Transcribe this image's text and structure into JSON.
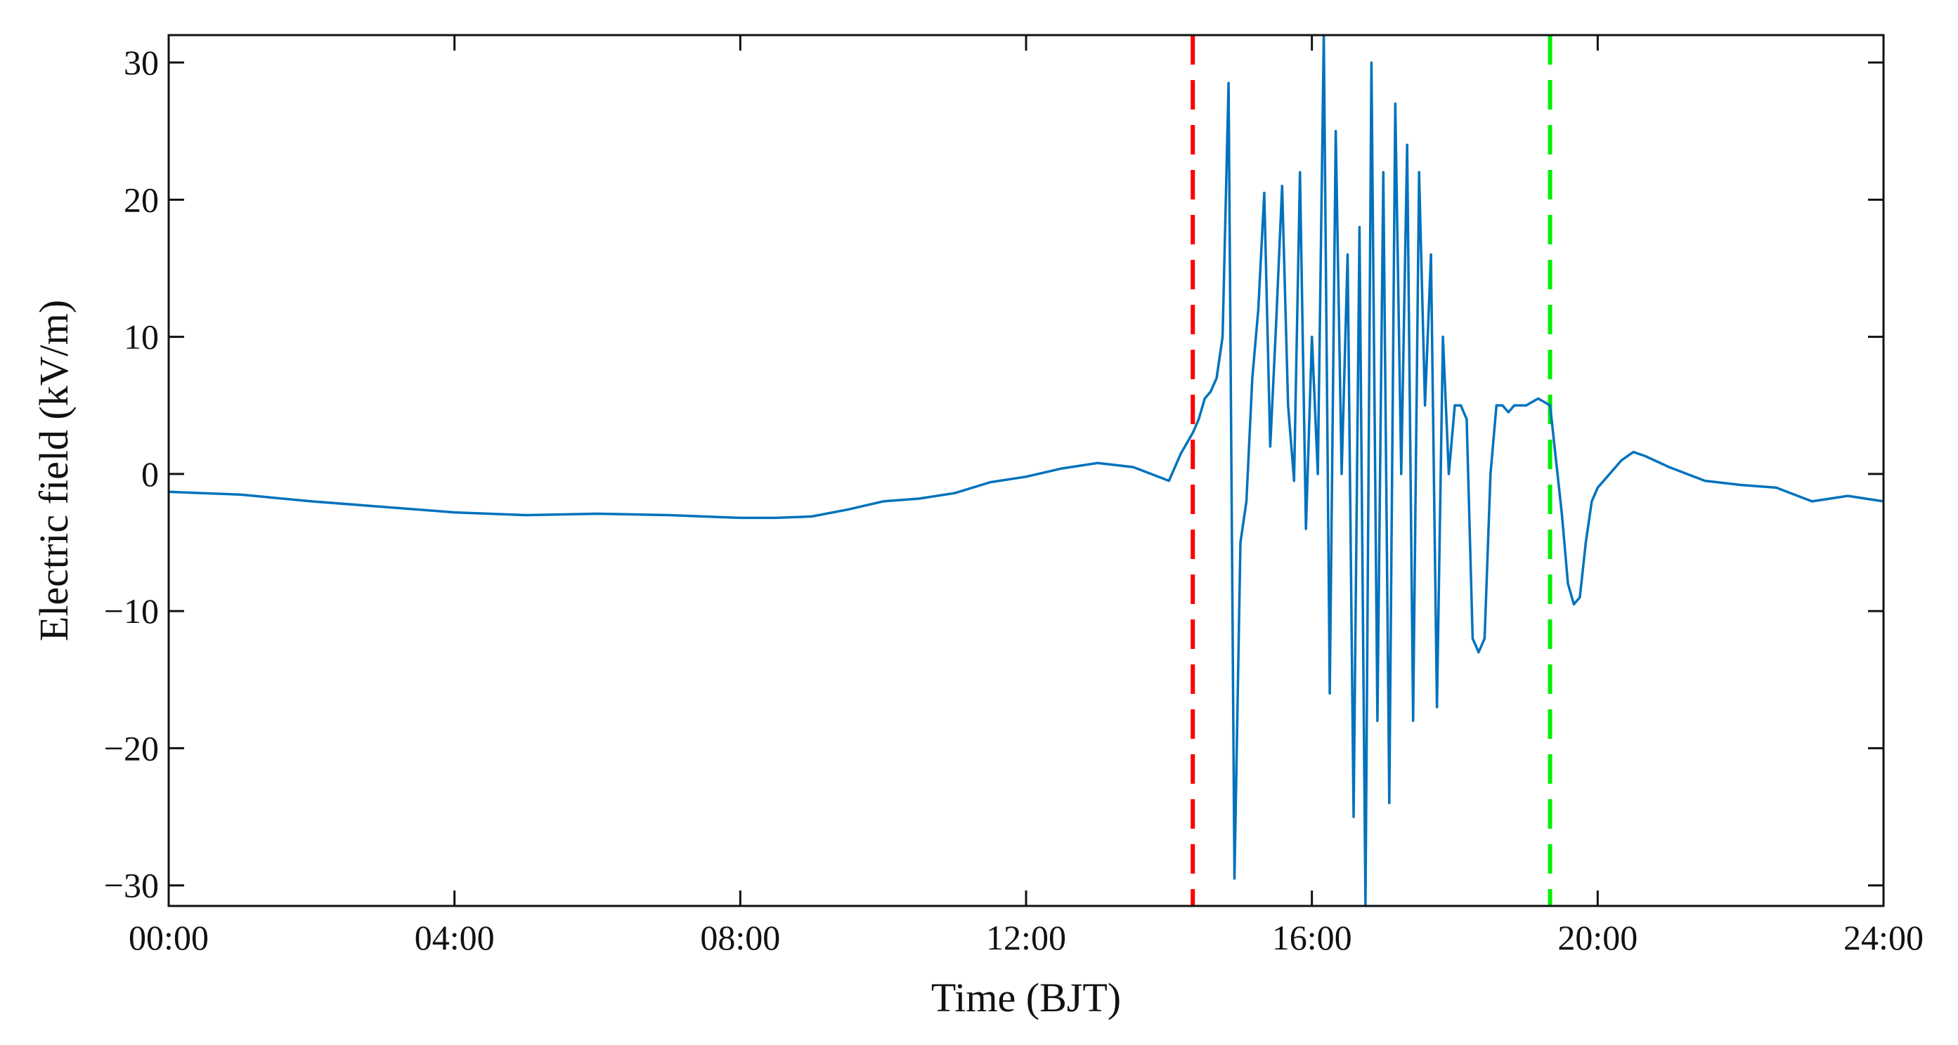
{
  "chart_data": {
    "type": "line",
    "title": "",
    "xlabel": "Time (BJT)",
    "ylabel": "Electric field (kV/m)",
    "xlim": [
      "00:00",
      "24:00"
    ],
    "ylim": [
      -31.5,
      32
    ],
    "x_ticks": [
      "00:00",
      "04:00",
      "08:00",
      "12:00",
      "16:00",
      "20:00",
      "24:00"
    ],
    "y_ticks": [
      -30,
      -20,
      -10,
      0,
      10,
      20,
      30
    ],
    "y_tick_labels": [
      "−30",
      "−20",
      "−10",
      "0",
      "10",
      "20",
      "30"
    ],
    "grid": false,
    "series": [
      {
        "color": "#0072BD",
        "x": [
          "00:00",
          "01:00",
          "02:00",
          "03:00",
          "04:00",
          "05:00",
          "06:00",
          "07:00",
          "08:00",
          "08:30",
          "09:00",
          "09:30",
          "10:00",
          "10:30",
          "11:00",
          "11:30",
          "12:00",
          "12:30",
          "13:00",
          "13:30",
          "14:00",
          "14:10",
          "14:20",
          "14:25",
          "14:30",
          "14:35",
          "14:40",
          "14:45",
          "14:50",
          "14:55",
          "15:00",
          "15:05",
          "15:10",
          "15:15",
          "15:20",
          "15:25",
          "15:30",
          "15:35",
          "15:40",
          "15:45",
          "15:50",
          "15:55",
          "16:00",
          "16:05",
          "16:10",
          "16:15",
          "16:20",
          "16:25",
          "16:30",
          "16:35",
          "16:40",
          "16:45",
          "16:50",
          "16:55",
          "17:00",
          "17:05",
          "17:10",
          "17:15",
          "17:20",
          "17:25",
          "17:30",
          "17:35",
          "17:40",
          "17:45",
          "17:50",
          "17:55",
          "18:00",
          "18:05",
          "18:10",
          "18:15",
          "18:20",
          "18:25",
          "18:30",
          "18:35",
          "18:40",
          "18:45",
          "18:50",
          "18:55",
          "19:00",
          "19:10",
          "19:20",
          "19:30",
          "19:35",
          "19:40",
          "19:45",
          "19:50",
          "19:55",
          "20:00",
          "20:10",
          "20:20",
          "20:30",
          "20:40",
          "21:00",
          "21:30",
          "22:00",
          "22:30",
          "23:00",
          "23:30",
          "24:00"
        ],
        "y": [
          -1.3,
          -1.5,
          -2.0,
          -2.4,
          -2.8,
          -3.0,
          -2.9,
          -3.0,
          -3.2,
          -3.2,
          -3.1,
          -2.6,
          -2.0,
          -1.8,
          -1.4,
          -0.6,
          -0.2,
          0.4,
          0.8,
          0.5,
          -0.5,
          1.5,
          3.0,
          4.0,
          5.5,
          6.0,
          7.0,
          10.0,
          28.5,
          -29.5,
          -5.0,
          -2.0,
          7.0,
          12.0,
          20.5,
          2.0,
          11.0,
          21.0,
          5.0,
          -0.5,
          22.0,
          -4.0,
          10.0,
          0.0,
          32.0,
          -16.0,
          25.0,
          0.0,
          16.0,
          -25.0,
          18.0,
          -31.5,
          30.0,
          -18.0,
          22.0,
          -24.0,
          27.0,
          0.0,
          24.0,
          -18.0,
          22.0,
          5.0,
          16.0,
          -17.0,
          10.0,
          0.0,
          5.0,
          5.0,
          4.0,
          -12.0,
          -13.0,
          -12.0,
          0.0,
          5.0,
          5.0,
          4.5,
          5.0,
          5.0,
          5.0,
          5.5,
          5.0,
          -3.0,
          -8.0,
          -9.5,
          -9.0,
          -5.0,
          -2.0,
          -1.0,
          0.0,
          1.0,
          1.6,
          1.3,
          0.5,
          -0.5,
          -0.8,
          -1.0,
          -2.0,
          -1.6,
          -2.0
        ]
      }
    ],
    "vertical_lines": [
      {
        "x": "14:20",
        "color": "#FF0000",
        "style": "dashed"
      },
      {
        "x": "19:20",
        "color": "#00EE00",
        "style": "dashed"
      }
    ]
  }
}
